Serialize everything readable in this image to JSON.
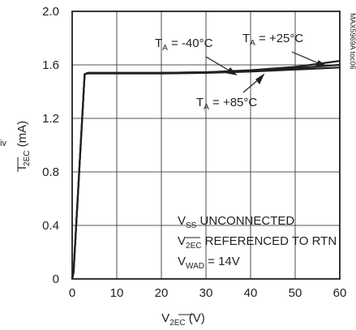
{
  "chart_data": {
    "type": "line",
    "xlabel_main": "V",
    "xlabel_sub": "2EC",
    "xlabel_unit": " (V)",
    "ylabel_main": "I",
    "ylabel_sub": "2EC",
    "ylabel_unit": " (mA)",
    "xlim": [
      0,
      60
    ],
    "ylim": [
      0,
      2.0
    ],
    "x_ticks": [
      "0",
      "10",
      "20",
      "30",
      "40",
      "50",
      "60"
    ],
    "y_ticks": [
      "0",
      "0.4",
      "0.8",
      "1.2",
      "1.6",
      "2.0"
    ],
    "grid": true,
    "side_code": "MAX5969A toc06",
    "left_fragment": "iv",
    "series": [
      {
        "name": "T_A = -40°C",
        "x": [
          0,
          0.3,
          2.8,
          3.5,
          10,
          20,
          30,
          40,
          50,
          60
        ],
        "y": [
          0,
          0.05,
          1.53,
          1.54,
          1.54,
          1.54,
          1.545,
          1.56,
          1.585,
          1.63
        ]
      },
      {
        "name": "T_A = +25°C",
        "x": [
          0,
          0.3,
          2.8,
          3.5,
          10,
          20,
          30,
          40,
          50,
          60
        ],
        "y": [
          0,
          0.05,
          1.53,
          1.54,
          1.54,
          1.54,
          1.545,
          1.555,
          1.575,
          1.6
        ]
      },
      {
        "name": "T_A = +85°C",
        "x": [
          0,
          0.3,
          2.8,
          3.5,
          10,
          20,
          30,
          40,
          50,
          60
        ],
        "y": [
          0,
          0.05,
          1.53,
          1.535,
          1.535,
          1.535,
          1.54,
          1.55,
          1.565,
          1.58
        ]
      }
    ],
    "annotations": {
      "t40_main": "T",
      "t40_sub": "A",
      "t40_rest": " = -40°C",
      "t25_main": "T",
      "t25_sub": "A",
      "t25_rest": " = +25°C",
      "t85_main": "T",
      "t85_sub": "A",
      "t85_rest": " = +85°C",
      "cond1_main": "V",
      "cond1_sub": "SS",
      "cond1_rest": " UNCONNECTED",
      "cond2_main": "V",
      "cond2_sub": "2EC",
      "cond2_rest": " REFERENCED TO RTN",
      "cond3_main": "V",
      "cond3_sub": "WAD",
      "cond3_rest": " = 14V"
    }
  }
}
